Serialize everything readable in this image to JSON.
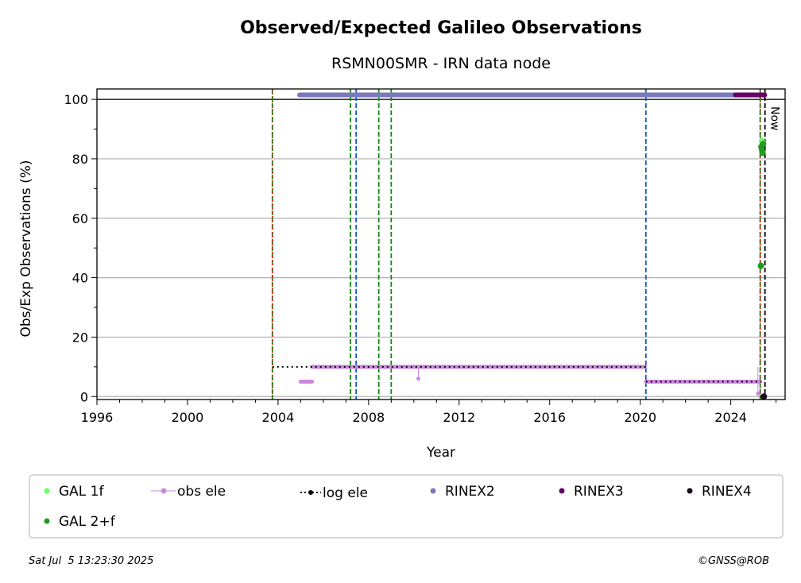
{
  "chart_data": {
    "type": "scatter",
    "title": "Observed/Expected Galileo Observations",
    "subtitle": "RSMN00SMR - IRN data node",
    "xlabel": "Year",
    "ylabel": "Obs/Exp Observations (%)",
    "xlim": [
      1996,
      2026.4
    ],
    "ylim": [
      -1,
      103.5
    ],
    "x_ticks": [
      1996,
      2000,
      2004,
      2008,
      2012,
      2016,
      2020,
      2024
    ],
    "y_ticks": [
      0,
      20,
      40,
      60,
      80,
      100
    ],
    "grid": "y",
    "reference_line_y": 100,
    "now_label": "Now",
    "now_x": 2025.51,
    "vlines_red": [
      2003.75,
      2025.3
    ],
    "vlines_green": [
      2003.75,
      2007.2,
      2008.45,
      2009.0,
      2025.3
    ],
    "vlines_blue": [
      2007.45,
      2020.25
    ],
    "vlines_black": [
      2025.51
    ],
    "series": [
      {
        "name": "GAL 1f",
        "color": "#66ff66",
        "points": [
          [
            2025.38,
            86
          ],
          [
            2025.42,
            85
          ]
        ]
      },
      {
        "name": "obs ele",
        "color": "#cc88dd",
        "segments": [
          [
            2005.0,
            5,
            2005.5,
            5
          ],
          [
            2005.5,
            10,
            2020.2,
            10
          ],
          [
            2020.25,
            5,
            2025.3,
            5
          ]
        ],
        "points": [
          [
            2010.2,
            6
          ],
          [
            2025.2,
            1
          ]
        ]
      },
      {
        "name": "log ele",
        "color": "#000000",
        "segments": [
          [
            2003.75,
            10,
            2020.25,
            10
          ],
          [
            2020.25,
            5,
            2025.35,
            5
          ],
          [
            2025.35,
            0,
            2025.51,
            0
          ]
        ]
      },
      {
        "name": "RINEX2",
        "color": "#7b78bb",
        "segments": [
          [
            2004.95,
            101.5,
            2024.2,
            101.5
          ]
        ]
      },
      {
        "name": "RINEX3",
        "color": "#660066",
        "segments": [
          [
            2024.2,
            101.5,
            2025.5,
            101.5
          ]
        ]
      },
      {
        "name": "RINEX4",
        "color": "#1a0a1a",
        "points": [
          [
            2025.46,
            0
          ]
        ]
      },
      {
        "name": "GAL 2+f",
        "color": "#229922",
        "points": [
          [
            2025.35,
            84
          ],
          [
            2025.38,
            83
          ],
          [
            2025.4,
            82
          ],
          [
            2025.43,
            85
          ],
          [
            2025.33,
            44
          ]
        ]
      }
    ]
  },
  "legend": {
    "items": [
      {
        "label": "GAL 1f",
        "marker": "dot",
        "color": "#66ff66"
      },
      {
        "label": "obs ele",
        "marker": "dot-line",
        "color": "#cc88dd"
      },
      {
        "label": "log ele",
        "marker": "dot-dotted",
        "color": "#000000"
      },
      {
        "label": "RINEX2",
        "marker": "dot",
        "color": "#7b78bb"
      },
      {
        "label": "RINEX3",
        "marker": "dot",
        "color": "#660066"
      },
      {
        "label": "RINEX4",
        "marker": "dot",
        "color": "#1a0a1a"
      },
      {
        "label": "GAL 2+f",
        "marker": "dot",
        "color": "#229922"
      }
    ]
  },
  "footer": {
    "timestamp": "Sat Jul  5 13:23:30 2025",
    "copyright": "©GNSS@ROB"
  }
}
